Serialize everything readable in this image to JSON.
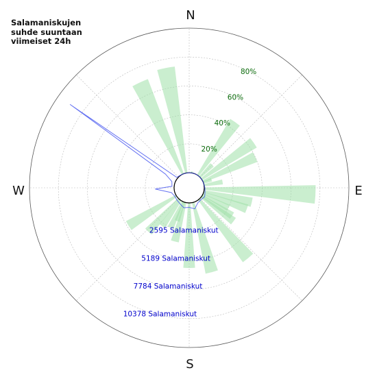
{
  "title_lines": [
    "Salamaniskujen",
    "suhde suuntaan",
    "viimeiset 24h"
  ],
  "compass": {
    "N": "N",
    "E": "E",
    "S": "S",
    "W": "W"
  },
  "colors": {
    "bar": "#9fe0a8",
    "line": "#3344ee",
    "grid": "#b8b8b8",
    "pct_text": "#0b6b0b",
    "count_text": "#0000cc"
  },
  "chart_data": {
    "type": "polar",
    "title": "Salamaniskujen suhde suuntaan viimeiset 24h",
    "angle_unit": "degrees from north, clockwise",
    "percent_ticks": [
      {
        "value": 20,
        "label": "20%"
      },
      {
        "value": 40,
        "label": "40%"
      },
      {
        "value": 60,
        "label": "60%"
      },
      {
        "value": 80,
        "label": "80%"
      }
    ],
    "count_ticks": [
      {
        "value": 2595,
        "label": "2595 Salamaniskut"
      },
      {
        "value": 5189,
        "label": "5189 Salamaniskut"
      },
      {
        "value": 7784,
        "label": "7784 Salamaniskut"
      },
      {
        "value": 10378,
        "label": "10378 Salamaniskut"
      }
    ],
    "percent_max": 100,
    "count_max": 12973,
    "bars": [
      {
        "dir": 10,
        "value": 1
      },
      {
        "dir": 35,
        "value": 45
      },
      {
        "dir": 45,
        "value": 12
      },
      {
        "dir": 55,
        "value": 44
      },
      {
        "dir": 65,
        "value": 40
      },
      {
        "dir": 70,
        "value": 6
      },
      {
        "dir": 80,
        "value": 13
      },
      {
        "dir": 93,
        "value": 77
      },
      {
        "dir": 103,
        "value": 34
      },
      {
        "dir": 110,
        "value": 32
      },
      {
        "dir": 117,
        "value": 20
      },
      {
        "dir": 123,
        "value": 25
      },
      {
        "dir": 127,
        "value": 28
      },
      {
        "dir": 140,
        "value": 53
      },
      {
        "dir": 165,
        "value": 50
      },
      {
        "dir": 180,
        "value": 45
      },
      {
        "dir": 195,
        "value": 28
      },
      {
        "dir": 200,
        "value": 14
      },
      {
        "dir": 205,
        "value": 20
      },
      {
        "dir": 215,
        "value": 22
      },
      {
        "dir": 223,
        "value": 31
      },
      {
        "dir": 238,
        "value": 39
      },
      {
        "dir": 335,
        "value": 70
      },
      {
        "dir": 349,
        "value": 74
      }
    ],
    "strike_counts": [
      {
        "dir": 0,
        "value": 10
      },
      {
        "dir": 15,
        "value": 10
      },
      {
        "dir": 30,
        "value": 10
      },
      {
        "dir": 45,
        "value": 10
      },
      {
        "dir": 60,
        "value": 10
      },
      {
        "dir": 75,
        "value": 10
      },
      {
        "dir": 90,
        "value": 60
      },
      {
        "dir": 105,
        "value": 120
      },
      {
        "dir": 120,
        "value": 250
      },
      {
        "dir": 135,
        "value": 150
      },
      {
        "dir": 150,
        "value": 200
      },
      {
        "dir": 165,
        "value": 600
      },
      {
        "dir": 180,
        "value": 400
      },
      {
        "dir": 195,
        "value": 500
      },
      {
        "dir": 210,
        "value": 300
      },
      {
        "dir": 225,
        "value": 200
      },
      {
        "dir": 240,
        "value": 150
      },
      {
        "dir": 255,
        "value": 300
      },
      {
        "dir": 268,
        "value": 1700
      },
      {
        "dir": 275,
        "value": 200
      },
      {
        "dir": 290,
        "value": 300
      },
      {
        "dir": 300,
        "value": 1100
      },
      {
        "dir": 305,
        "value": 11700
      },
      {
        "dir": 310,
        "value": 100
      },
      {
        "dir": 325,
        "value": 30
      },
      {
        "dir": 340,
        "value": 10
      },
      {
        "dir": 360,
        "value": 10
      }
    ]
  }
}
